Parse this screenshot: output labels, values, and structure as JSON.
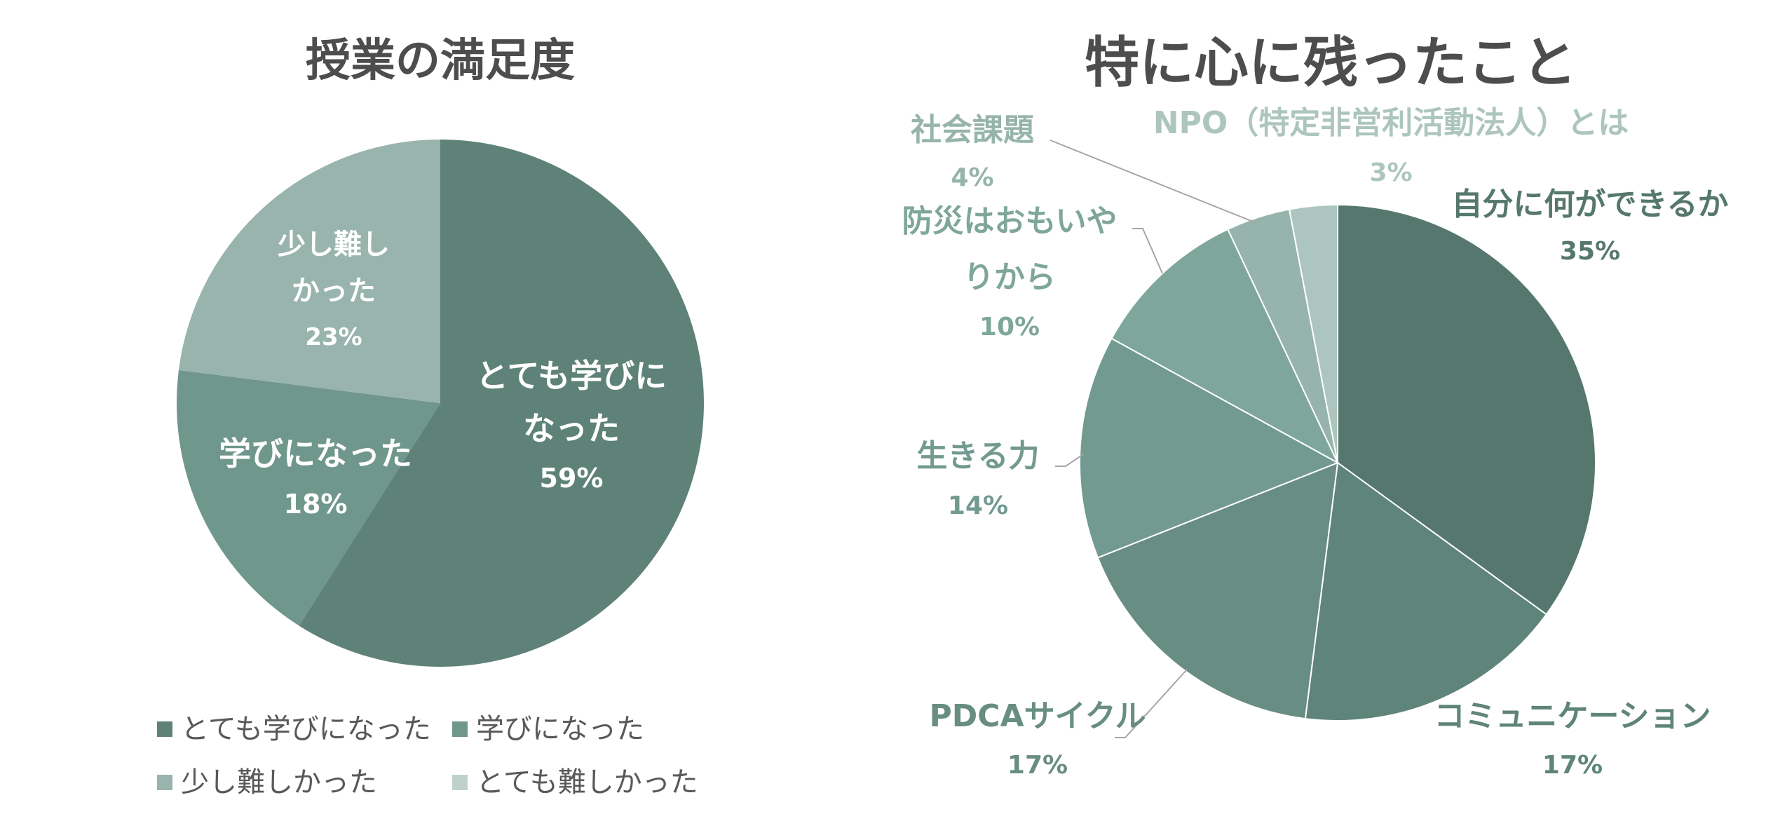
{
  "chart_data": [
    {
      "type": "pie",
      "title": "授業の満足度",
      "slices": [
        {
          "label": "とても学びになった",
          "value": 59,
          "pct": "59%",
          "color": "#5e8278"
        },
        {
          "label": "学びになった",
          "value": 18,
          "pct": "18%",
          "color": "#6f978c"
        },
        {
          "label": "少し難しかった",
          "value": 23,
          "pct": "23%",
          "color": "#98b4ad"
        },
        {
          "label": "とても難しかった",
          "value": 0,
          "pct": "0%",
          "color": "#bfd1cc"
        }
      ],
      "legend": [
        "とても学びになった",
        "学びになった",
        "少し難しかった",
        "とても難しかった"
      ],
      "legend_position": "bottom"
    },
    {
      "type": "pie",
      "title": "特に心に残ったこと",
      "slices": [
        {
          "label": "自分に何ができるか",
          "value": 35,
          "pct": "35%",
          "color": "#55776d"
        },
        {
          "label": "コミュニケーション",
          "value": 17,
          "pct": "17%",
          "color": "#5f847a"
        },
        {
          "label": "PDCAサイクル",
          "value": 17,
          "pct": "17%",
          "color": "#688d83"
        },
        {
          "label": "生きる力",
          "value": 14,
          "pct": "14%",
          "color": "#729a90"
        },
        {
          "label": "防災はおもいやりから",
          "value": 10,
          "pct": "10%",
          "color": "#7fa69b"
        },
        {
          "label": "社会課題",
          "value": 4,
          "pct": "4%",
          "color": "#96b4ab"
        },
        {
          "label": "NPO（特定非営利活動法人）とは",
          "value": 3,
          "pct": "3%",
          "color": "#adc5bf"
        }
      ],
      "legend_position": "none"
    }
  ]
}
